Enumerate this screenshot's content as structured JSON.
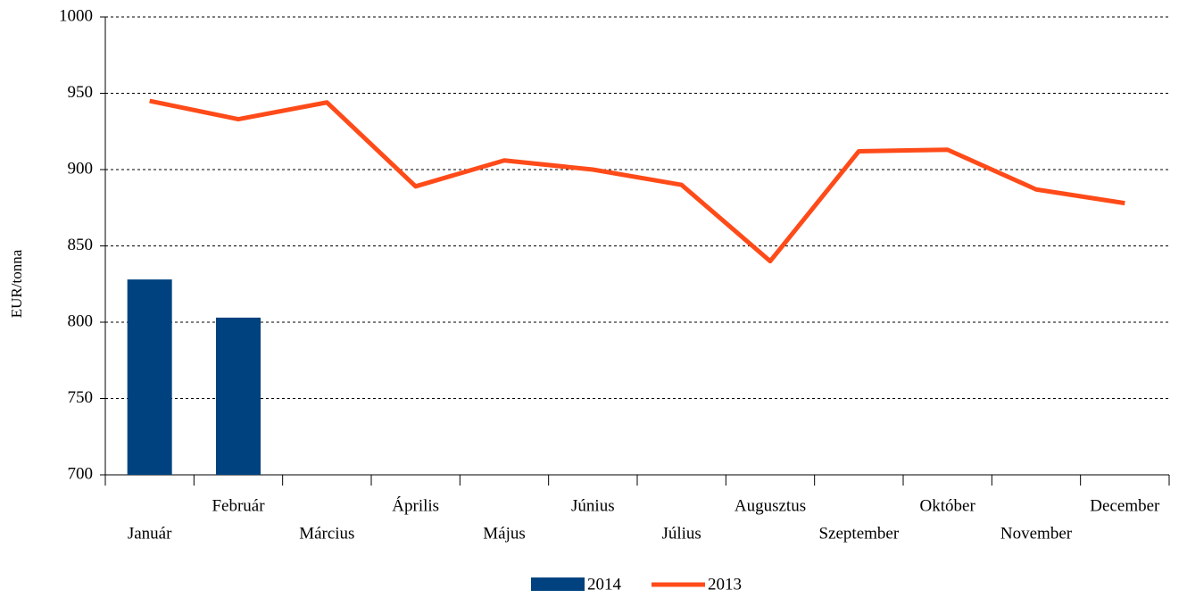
{
  "chart_data": {
    "type": "bar",
    "y_label": "EUR/tonna",
    "categories": [
      "Január",
      "Február",
      "Március",
      "Április",
      "Május",
      "Június",
      "Július",
      "Augusztus",
      "Szeptember",
      "Október",
      "November",
      "December"
    ],
    "series": [
      {
        "name": "2014",
        "type": "bar",
        "color": "#00427f",
        "values": [
          828,
          803,
          null,
          null,
          null,
          null,
          null,
          null,
          null,
          null,
          null,
          null
        ]
      },
      {
        "name": "2013",
        "type": "line",
        "color": "#ff4b19",
        "values": [
          945,
          933,
          944,
          889,
          906,
          900,
          890,
          840,
          912,
          913,
          887,
          878
        ]
      }
    ],
    "ylim": [
      700,
      1000
    ],
    "yticks": [
      700,
      750,
      800,
      850,
      900,
      950,
      1000
    ],
    "grid": true,
    "legend": "bottom"
  }
}
